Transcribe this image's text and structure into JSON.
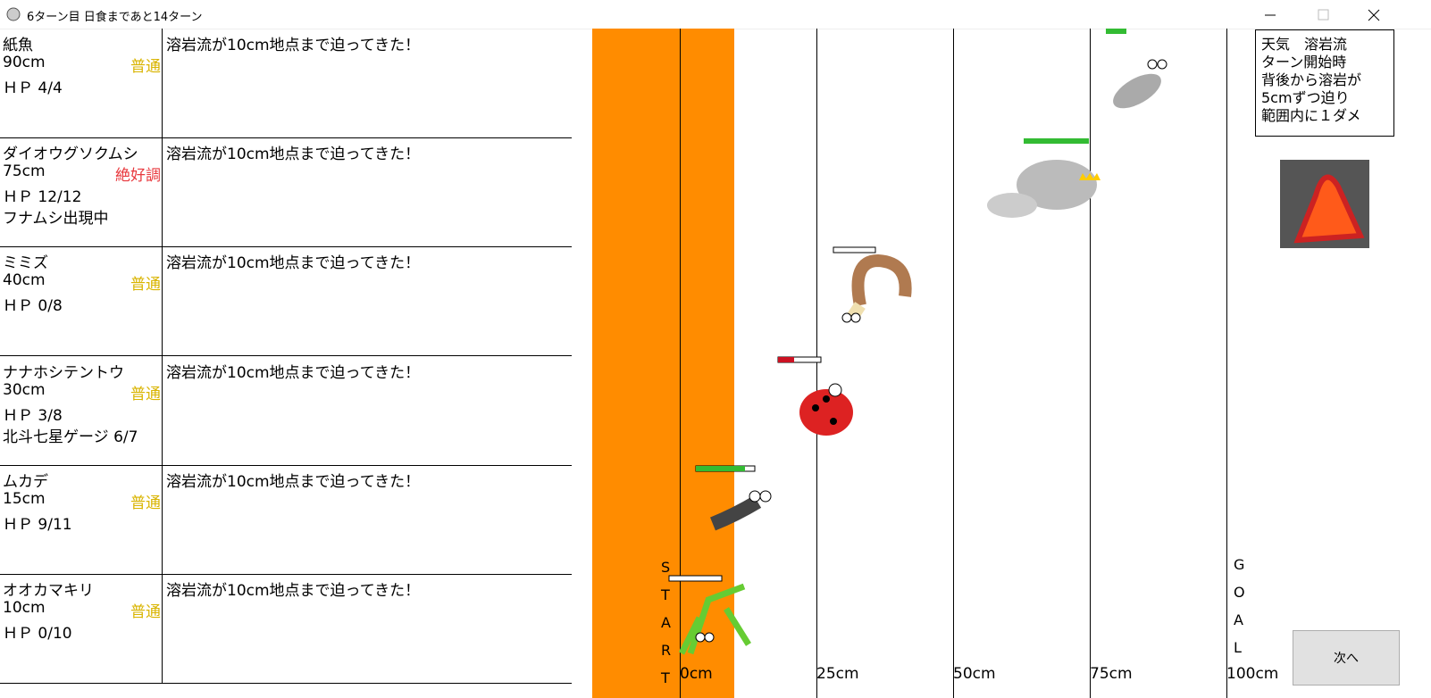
{
  "window": {
    "title": "6ターン目 日食まであと14ターン"
  },
  "racers": [
    {
      "name": "紙魚",
      "distance": "90cm",
      "condition": "普通",
      "condition_color": "#d9b400",
      "hp": "ＨＰ 4/4",
      "message": "溶岩流が10cm地点まで迫ってきた！"
    },
    {
      "name": "ダイオウグソクムシ",
      "distance": "75cm",
      "condition": "絶好調",
      "condition_color": "#e8383d",
      "hp": "ＨＰ 12/12",
      "note": "フナムシ出現中",
      "message": "溶岩流が10cm地点まで迫ってきた！"
    },
    {
      "name": "ミミズ",
      "distance": "40cm",
      "condition": "普通",
      "condition_color": "#d9b400",
      "hp": "ＨＰ 0/8",
      "message": "溶岩流が10cm地点まで迫ってきた！"
    },
    {
      "name": "ナナホシテントウ",
      "distance": "30cm",
      "condition": "普通",
      "condition_color": "#d9b400",
      "hp": "ＨＰ 3/8",
      "note": "北斗七星ゲージ 6/7",
      "message": "溶岩流が10cm地点まで迫ってきた！"
    },
    {
      "name": "ムカデ",
      "distance": "15cm",
      "condition": "普通",
      "condition_color": "#d9b400",
      "hp": "ＨＰ 9/11",
      "message": "溶岩流が10cm地点まで迫ってきた！"
    },
    {
      "name": "オオカマキリ",
      "distance": "10cm",
      "condition": "普通",
      "condition_color": "#d9b400",
      "hp": "ＨＰ 0/10",
      "message": "溶岩流が10cm地点まで迫ってきた！"
    }
  ],
  "track": {
    "start_label": "START",
    "goal_label": "GOAL",
    "axis_labels": [
      "0cm",
      "25cm",
      "50cm",
      "75cm",
      "100cm"
    ]
  },
  "weather": {
    "lines": [
      "天気　溶岩流",
      "ターン開始時",
      "背後から溶岩が",
      "5cmずつ迫り",
      "範囲内に１ダメ"
    ]
  },
  "button": {
    "label": "次へ"
  }
}
